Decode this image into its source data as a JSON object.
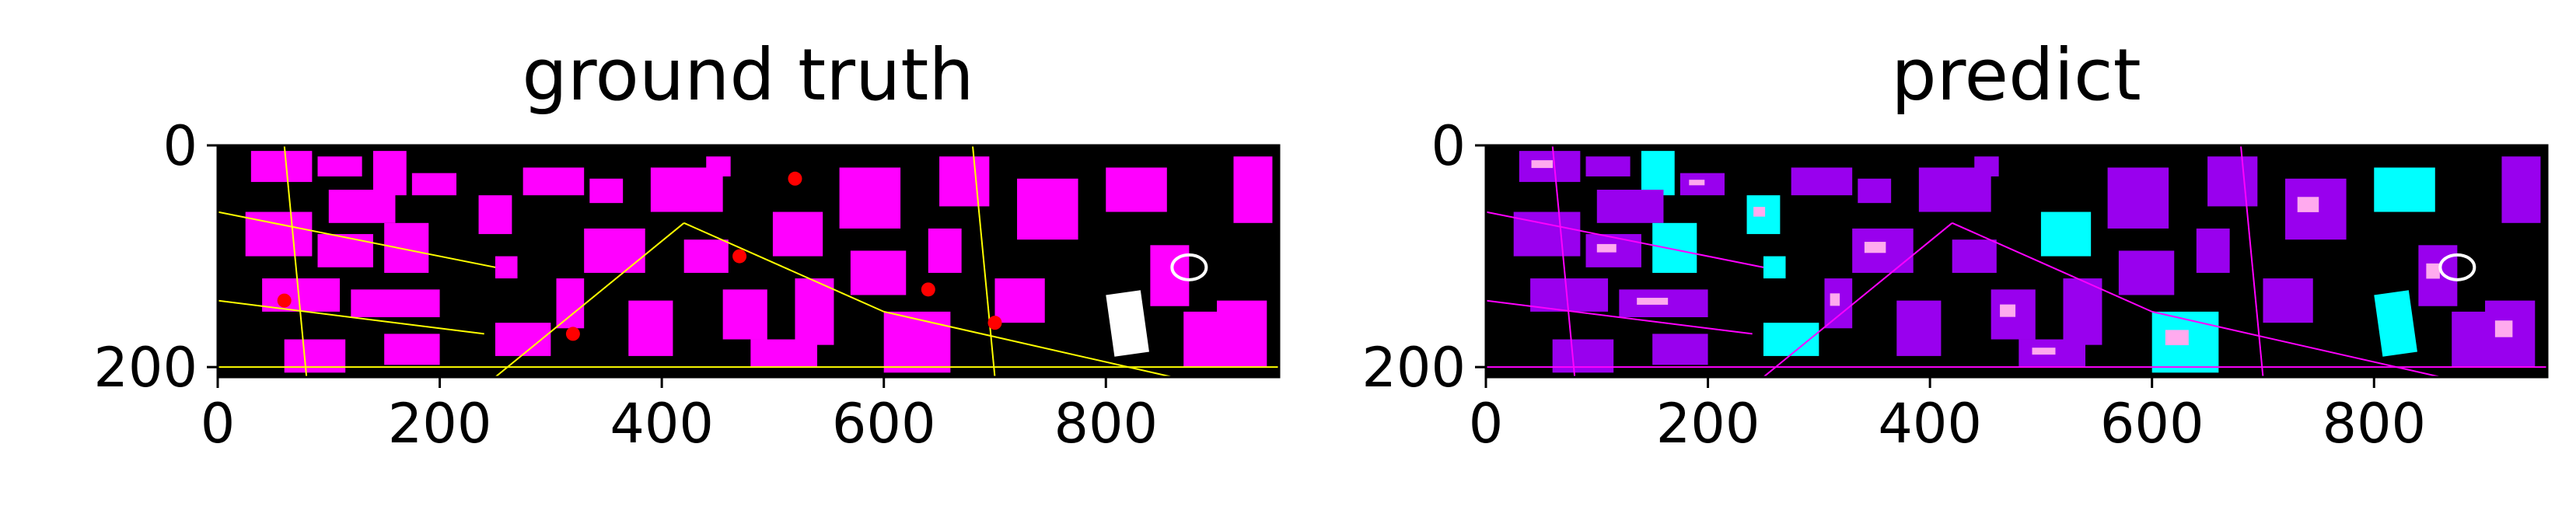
{
  "colors": {
    "background": "#000000",
    "magenta": "#ff00ff",
    "violet": "#9900ee",
    "cyan": "#00ffff",
    "yellow": "#ffff00",
    "red": "#ff0000",
    "white": "#ffffff",
    "pink": "#ffaaee"
  },
  "chart_data": [
    {
      "type": "heatmap",
      "title": "ground truth",
      "xlim": [
        0,
        956
      ],
      "ylim": [
        209,
        0
      ],
      "xticks": [
        0,
        200,
        400,
        600,
        800
      ],
      "xtick_labels": [
        "0",
        "200",
        "400",
        "600",
        "800"
      ],
      "yticks": [
        0,
        200
      ],
      "ytick_labels": [
        "0",
        "200"
      ],
      "grid": false
    },
    {
      "type": "heatmap",
      "title": "predict",
      "xlim": [
        0,
        956
      ],
      "ylim": [
        209,
        0
      ],
      "xticks": [
        0,
        200,
        400,
        600,
        800
      ],
      "xtick_labels": [
        "0",
        "200",
        "400",
        "600",
        "800"
      ],
      "yticks": [
        0,
        200
      ],
      "ytick_labels": [
        "0",
        "200"
      ],
      "grid": false
    }
  ]
}
